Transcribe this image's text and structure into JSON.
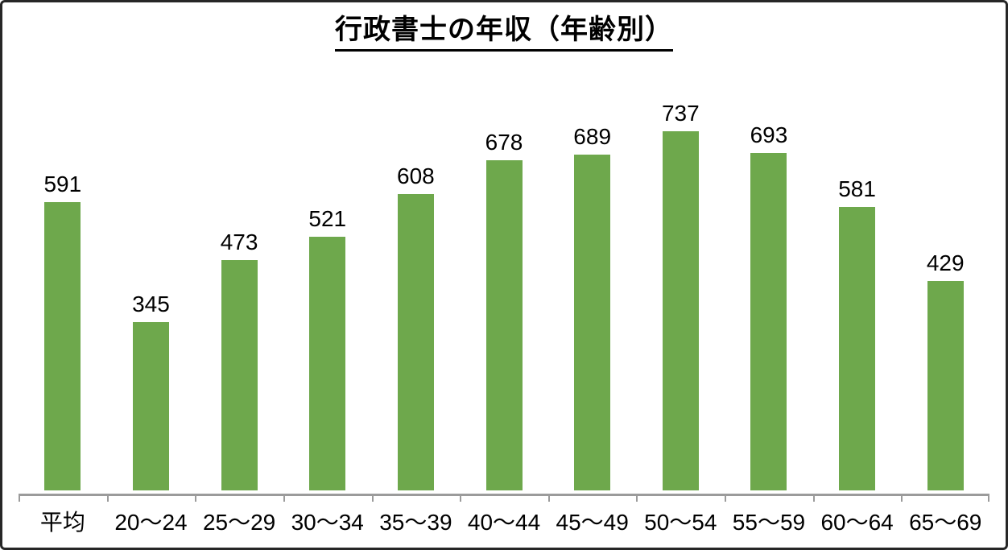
{
  "chart_data": {
    "type": "bar",
    "title": "行政書士の年収（年齢別）",
    "categories": [
      "平均",
      "20〜24",
      "25〜29",
      "30〜34",
      "35〜39",
      "40〜44",
      "45〜49",
      "50〜54",
      "55〜59",
      "60〜64",
      "65〜69"
    ],
    "values": [
      591,
      345,
      473,
      521,
      608,
      678,
      689,
      737,
      693,
      581,
      429
    ],
    "xlabel": "",
    "ylabel": "",
    "ylim": [
      0,
      800
    ],
    "grid": false,
    "legend": "none",
    "data_labels": "above-bars",
    "colors": {
      "bar": "#6EA84C",
      "axis": "#9B9B9B",
      "text": "#000000",
      "background": "#FFFFFF",
      "frame_border": "#262626"
    }
  }
}
